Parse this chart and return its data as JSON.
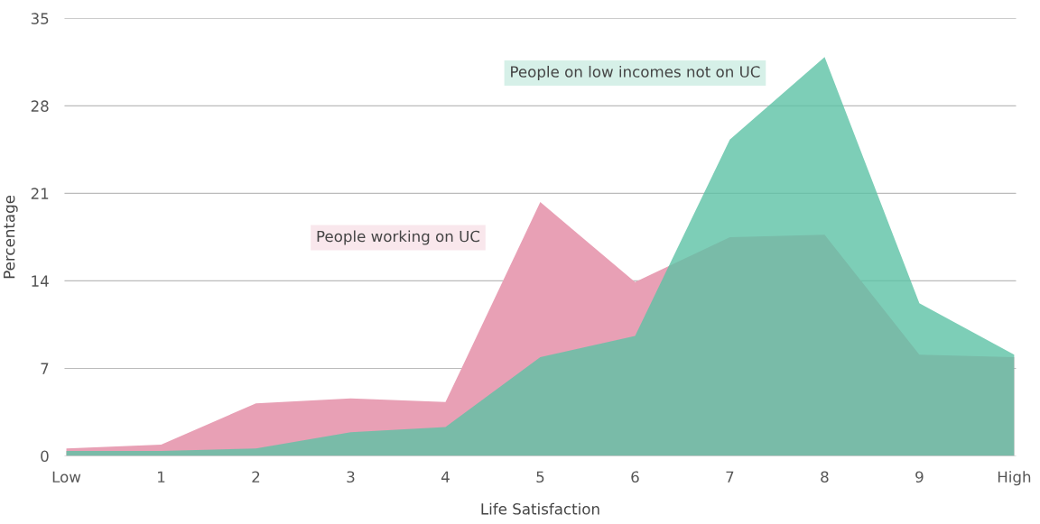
{
  "chart_data": {
    "type": "area",
    "xlabel": "Life Satisfaction",
    "ylabel": "Percentage",
    "categories": [
      "Low",
      "1",
      "2",
      "3",
      "4",
      "5",
      "6",
      "7",
      "8",
      "9",
      "High"
    ],
    "series": [
      {
        "name": "People working on UC",
        "color": "#e8a0b5",
        "values": [
          0.6,
          0.9,
          4.2,
          4.6,
          4.3,
          20.3,
          13.9,
          17.5,
          17.7,
          8.1,
          7.9
        ]
      },
      {
        "name": "People on low incomes not on UC",
        "color": "#5cc2a5",
        "values": [
          0.4,
          0.4,
          0.6,
          1.9,
          2.3,
          7.9,
          9.6,
          25.3,
          31.9,
          12.2,
          8.1
        ]
      }
    ],
    "ylim": [
      0,
      35
    ],
    "yticks": [
      0,
      7,
      14,
      21,
      28,
      35
    ],
    "grid": "y",
    "legend": false
  }
}
